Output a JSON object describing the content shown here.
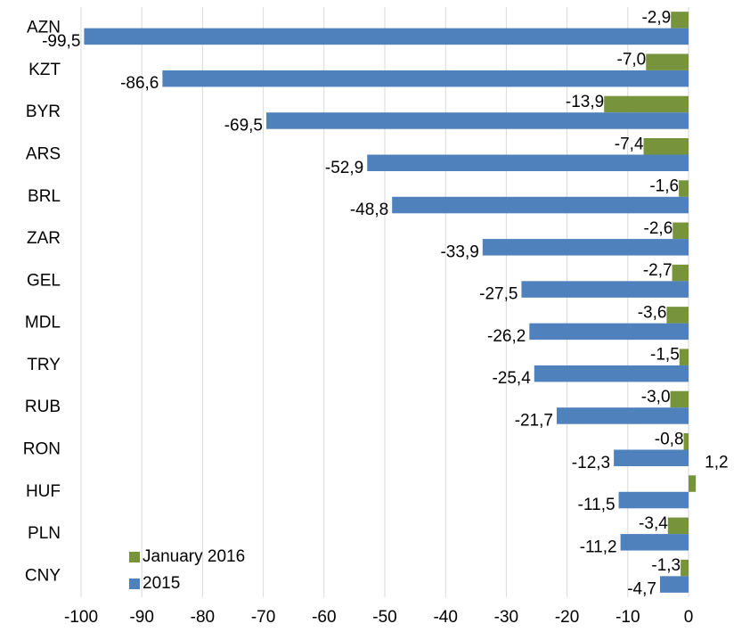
{
  "chart_data": {
    "type": "hbar",
    "categories": [
      "AZN",
      "KZT",
      "BYR",
      "ARS",
      "BRL",
      "ZAR",
      "GEL",
      "MDL",
      "TRY",
      "RUB",
      "RON",
      "HUF",
      "PLN",
      "CNY"
    ],
    "series": [
      {
        "name": "January 2016",
        "color": "#77933c",
        "label_color": "#1aa31a",
        "values": [
          -2.9,
          -7.0,
          -13.9,
          -7.4,
          -1.6,
          -2.6,
          -2.7,
          -3.6,
          -1.5,
          -3.0,
          -0.8,
          1.2,
          -3.4,
          -1.3
        ],
        "value_labels": [
          "-2,9",
          "-7,0",
          "-13,9",
          "-7,4",
          "-1,6",
          "-2,6",
          "-2,7",
          "-3,6",
          "-1,5",
          "-3,0",
          "-0,8",
          "1,2",
          "-3,4",
          "-1,3"
        ]
      },
      {
        "name": "2015",
        "color": "#4f81bd",
        "label_color": "#000000",
        "values": [
          -99.5,
          -86.6,
          -69.5,
          -52.9,
          -48.8,
          -33.9,
          -27.5,
          -26.2,
          -25.4,
          -21.7,
          -12.3,
          -11.5,
          -11.2,
          -4.7
        ],
        "value_labels": [
          "-99,5",
          "-86,6",
          "-69,5",
          "-52,9",
          "-48,8",
          "-33,9",
          "-27,5",
          "-26,2",
          "-25,4",
          "-21,7",
          "-12,3",
          "-11,5",
          "-11,2",
          "-4,7"
        ]
      }
    ],
    "xlim": [
      -100,
      0
    ],
    "xticks": [
      -100,
      -90,
      -80,
      -70,
      -60,
      -50,
      -40,
      -30,
      -20,
      -10,
      0
    ],
    "grid": true,
    "legend": "lower left"
  }
}
